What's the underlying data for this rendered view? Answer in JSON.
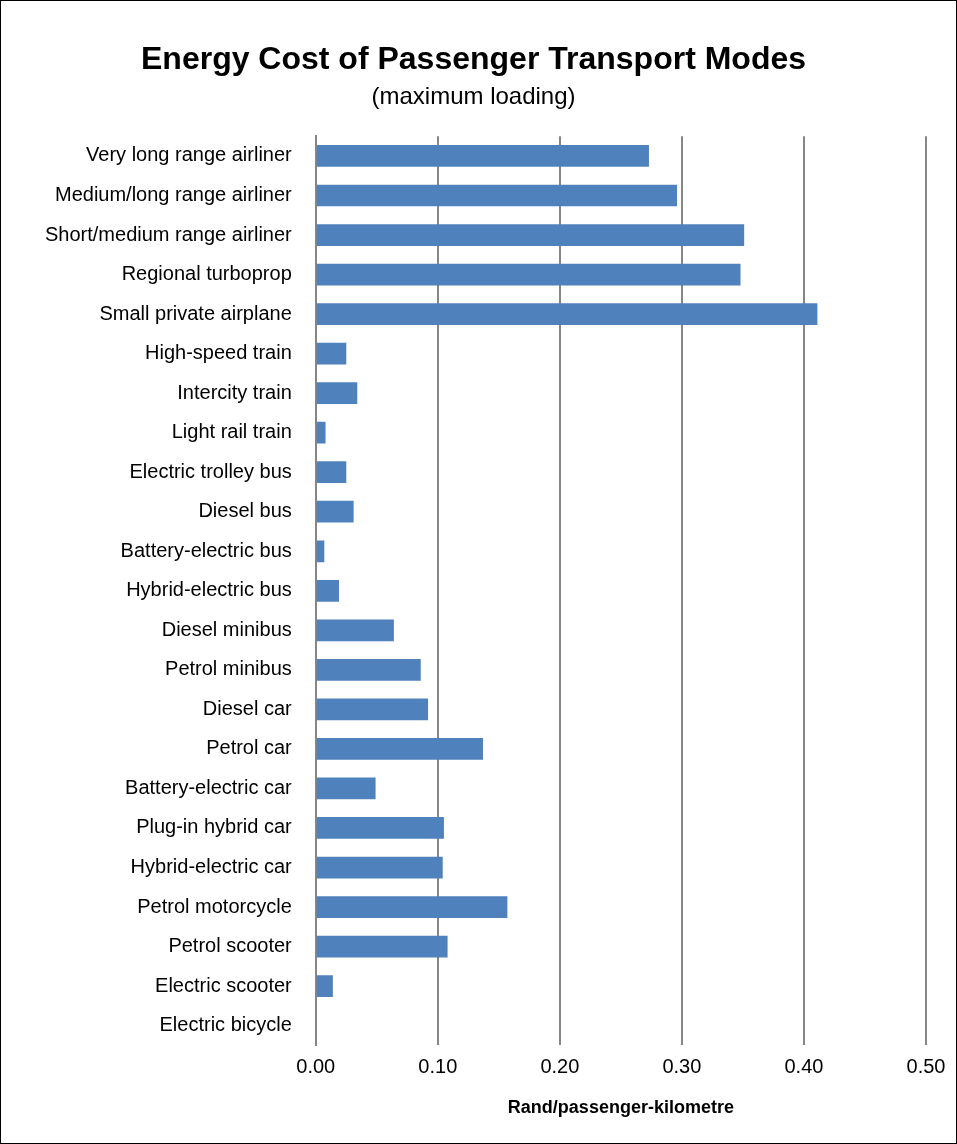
{
  "chart_data": {
    "type": "bar",
    "orientation": "horizontal",
    "title": "Energy Cost of Passenger Transport Modes",
    "subtitle": "(maximum loading)",
    "xlabel": "Rand/passenger-kilometre",
    "categories": [
      "Very long range airliner",
      "Medium/long range airliner",
      "Short/medium range airliner",
      "Regional turboprop",
      "Small private airplane",
      "High-speed train",
      "Intercity train",
      "Light rail train",
      "Electric trolley bus",
      "Diesel bus",
      "Battery-electric bus",
      "Hybrid-electric bus",
      "Diesel minibus",
      "Petrol minibus",
      "Diesel car",
      "Petrol car",
      "Battery-electric car",
      "Plug-in hybrid car",
      "Hybrid-electric car",
      "Petrol motorcycle",
      "Petrol scooter",
      "Electric scooter",
      "Electric bicycle"
    ],
    "values": [
      0.273,
      0.296,
      0.351,
      0.348,
      0.411,
      0.025,
      0.034,
      0.008,
      0.025,
      0.031,
      0.007,
      0.019,
      0.064,
      0.086,
      0.092,
      0.137,
      0.049,
      0.105,
      0.104,
      0.157,
      0.108,
      0.014,
      null
    ],
    "color": "#4f81bd",
    "xlim": [
      0,
      0.5
    ],
    "xticks": [
      {
        "value": 0,
        "label": "0.00"
      },
      {
        "value": 0.1,
        "label": "0.10"
      },
      {
        "value": 0.2,
        "label": "0.20"
      },
      {
        "value": 0.3,
        "label": "0.30"
      },
      {
        "value": 0.4,
        "label": "0.40"
      },
      {
        "value": 0.5,
        "label": "0.50"
      }
    ],
    "grid": "x",
    "legend": false
  }
}
